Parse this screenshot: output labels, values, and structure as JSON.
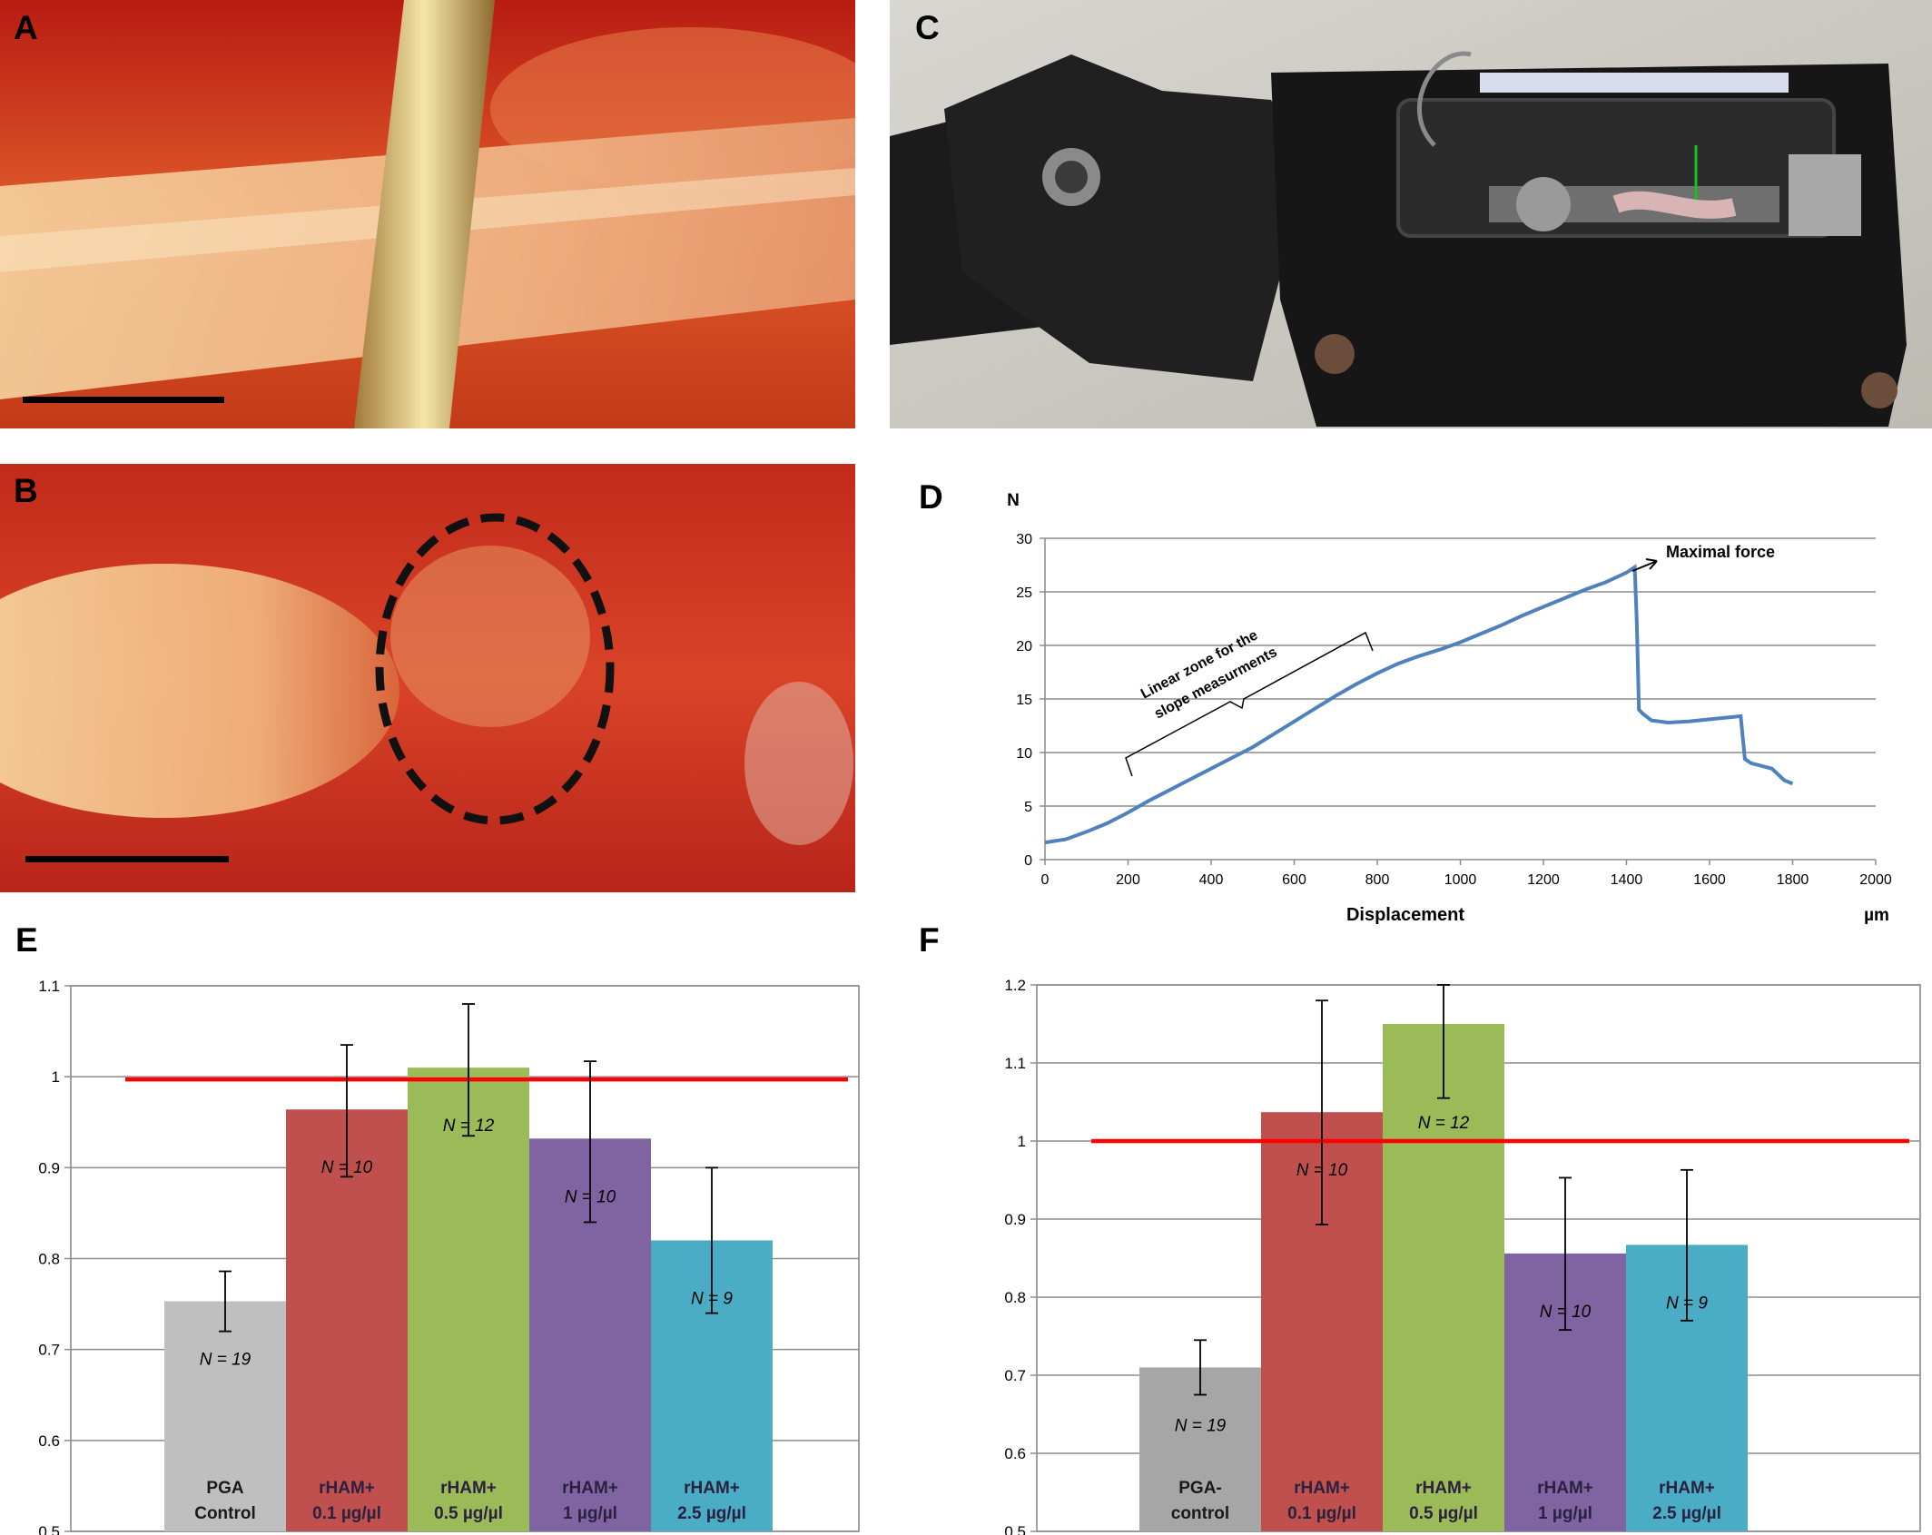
{
  "panels": {
    "a": {
      "letter": "A"
    },
    "b": {
      "letter": "B"
    },
    "c": {
      "letter": "C"
    },
    "d": {
      "letter": "D"
    },
    "e": {
      "letter": "E"
    },
    "f": {
      "letter": "F"
    }
  },
  "chart_data": [
    {
      "panel": "D",
      "type": "line",
      "xlabel": "Displacement",
      "x_unit": "µm",
      "y_unit": "N",
      "xlim": [
        0,
        2000
      ],
      "ylim": [
        0,
        30
      ],
      "x_ticks": [
        0,
        200,
        400,
        600,
        800,
        1000,
        1200,
        1400,
        1600,
        1800,
        2000
      ],
      "y_ticks": [
        0,
        5,
        10,
        15,
        20,
        25,
        30
      ],
      "grid": "horizontal",
      "color": "#4f81bd",
      "points": [
        [
          0,
          1.6
        ],
        [
          50,
          1.9
        ],
        [
          100,
          2.6
        ],
        [
          150,
          3.4
        ],
        [
          200,
          4.4
        ],
        [
          250,
          5.5
        ],
        [
          300,
          6.5
        ],
        [
          350,
          7.5
        ],
        [
          400,
          8.5
        ],
        [
          450,
          9.5
        ],
        [
          500,
          10.5
        ],
        [
          550,
          11.7
        ],
        [
          600,
          12.9
        ],
        [
          650,
          14.1
        ],
        [
          700,
          15.3
        ],
        [
          750,
          16.4
        ],
        [
          800,
          17.4
        ],
        [
          850,
          18.3
        ],
        [
          900,
          19.0
        ],
        [
          950,
          19.6
        ],
        [
          1000,
          20.3
        ],
        [
          1050,
          21.1
        ],
        [
          1100,
          21.9
        ],
        [
          1150,
          22.8
        ],
        [
          1200,
          23.6
        ],
        [
          1250,
          24.4
        ],
        [
          1300,
          25.2
        ],
        [
          1350,
          25.9
        ],
        [
          1400,
          26.8
        ],
        [
          1420,
          27.3
        ],
        [
          1425,
          22.0
        ],
        [
          1430,
          14.0
        ],
        [
          1440,
          13.6
        ],
        [
          1460,
          13.0
        ],
        [
          1500,
          12.8
        ],
        [
          1550,
          12.9
        ],
        [
          1600,
          13.1
        ],
        [
          1650,
          13.3
        ],
        [
          1675,
          13.4
        ],
        [
          1685,
          9.4
        ],
        [
          1700,
          9.0
        ],
        [
          1750,
          8.5
        ],
        [
          1780,
          7.4
        ],
        [
          1800,
          7.1
        ]
      ],
      "annotations": [
        {
          "label": "Maximal force",
          "x": 1420,
          "y": 27.3
        },
        {
          "label": "Linear zone for  the slope measurments",
          "x_range": [
            200,
            800
          ]
        }
      ]
    },
    {
      "panel": "E",
      "type": "bar",
      "ylim": [
        0.5,
        1.1
      ],
      "y_ticks": [
        "0.5",
        "0.6",
        "0.7",
        "0.8",
        "0.9",
        "1",
        "1.1"
      ],
      "grid": "horizontal",
      "reference_line": {
        "value": 1.0,
        "color": "#ff0000"
      },
      "categories": [
        {
          "line1": "PGA",
          "line2": "Control",
          "value": 0.753,
          "err_low": 0.72,
          "err_high": 0.786,
          "n": "N = 19",
          "color": "#bfbfbf"
        },
        {
          "line1": "rHAM+",
          "line2": "0.1 µg/µl",
          "value": 0.964,
          "err_low": 0.89,
          "err_high": 1.035,
          "n": "N = 10",
          "color": "#c0504d"
        },
        {
          "line1": "rHAM+",
          "line2": "0.5 µg/µl",
          "value": 1.01,
          "err_low": 0.935,
          "err_high": 1.08,
          "n": "N = 12",
          "color": "#9bbb59"
        },
        {
          "line1": "rHAM+",
          "line2": "1 µg/µl",
          "value": 0.932,
          "err_low": 0.84,
          "err_high": 1.017,
          "n": "N = 10",
          "color": "#8064a2"
        },
        {
          "line1": "rHAM+",
          "line2": "2.5 µg/µl",
          "value": 0.82,
          "err_low": 0.74,
          "err_high": 0.9,
          "n": "N = 9",
          "color": "#4bacc6"
        }
      ]
    },
    {
      "panel": "F",
      "type": "bar",
      "ylim": [
        0.5,
        1.2
      ],
      "y_ticks": [
        "0.5",
        "0.6",
        "0.7",
        "0.8",
        "0.9",
        "1",
        "1.1",
        "1.2"
      ],
      "grid": "horizontal",
      "reference_line": {
        "value": 1.0,
        "color": "#ff0000"
      },
      "categories": [
        {
          "line1": "PGA-",
          "line2": "control",
          "value": 0.71,
          "err_low": 0.675,
          "err_high": 0.745,
          "n": "N = 19",
          "color": "#a6a6a6"
        },
        {
          "line1": "rHAM+",
          "line2": "0.1 µg/µl",
          "value": 1.037,
          "err_low": 0.893,
          "err_high": 1.18,
          "n": "N = 10",
          "color": "#c0504d"
        },
        {
          "line1": "rHAM+",
          "line2": "0.5 µg/µl",
          "value": 1.15,
          "err_low": 1.055,
          "err_high": 1.2,
          "n": "N = 12",
          "color": "#9bbb59"
        },
        {
          "line1": "rHAM+",
          "line2": "1 µg/µl",
          "value": 0.856,
          "err_low": 0.758,
          "err_high": 0.953,
          "n": "N = 10",
          "color": "#8064a2"
        },
        {
          "line1": "rHAM+",
          "line2": "2.5 µg/µl",
          "value": 0.867,
          "err_low": 0.77,
          "err_high": 0.963,
          "n": "N = 9",
          "color": "#4bacc6"
        }
      ]
    }
  ]
}
